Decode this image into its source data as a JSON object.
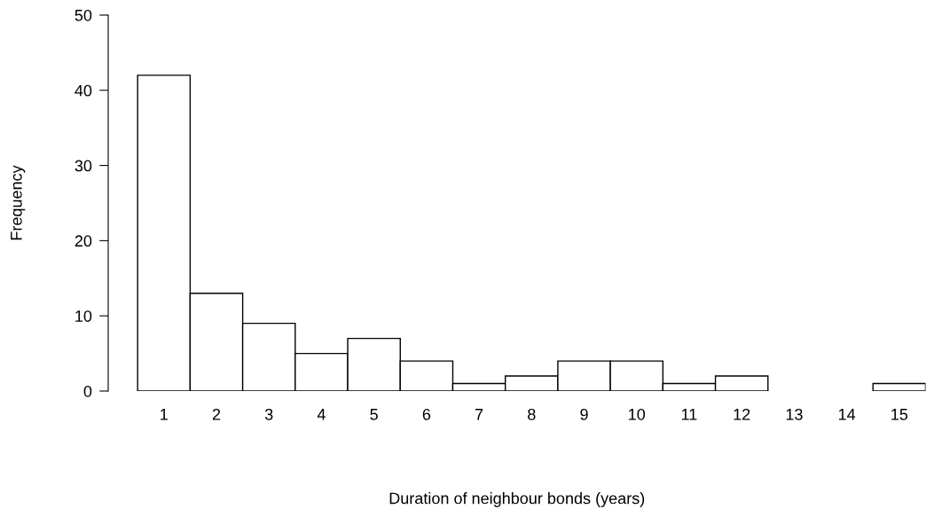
{
  "chart_data": {
    "type": "bar",
    "xlabel": "Duration of neighbour bonds (years)",
    "ylabel": "Frequency",
    "categories": [
      "1",
      "2",
      "3",
      "4",
      "5",
      "6",
      "7",
      "8",
      "9",
      "10",
      "11",
      "12",
      "13",
      "14",
      "15"
    ],
    "values": [
      42,
      13,
      9,
      5,
      7,
      4,
      1,
      2,
      4,
      4,
      1,
      2,
      0,
      0,
      1
    ],
    "color": "#ffffff",
    "ylim": [
      0,
      50
    ],
    "yticks": [
      0,
      10,
      20,
      30,
      40,
      50
    ],
    "grid": false,
    "legend": false
  }
}
